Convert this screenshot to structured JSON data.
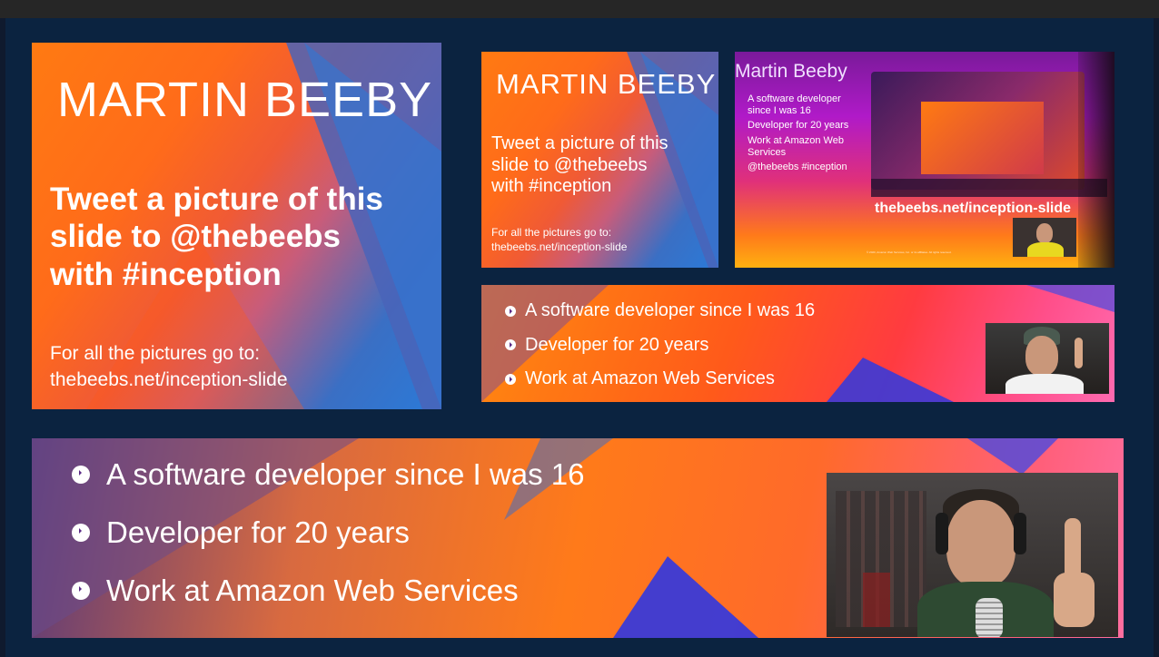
{
  "slide_main": {
    "name": "MARTIN BEEBY",
    "tweet": [
      "Tweet a picture of this",
      "slide to @thebeebs",
      "with #inception"
    ],
    "pictures_label": "For all the pictures go to:",
    "pictures_url": "thebeebs.net/inception-slide"
  },
  "slide_nested": {
    "name": "MARTIN BEEBY",
    "tweet": [
      "Tweet a picture of this",
      "slide to @thebeebs",
      "with #inception"
    ],
    "pictures_label": "For all the pictures go to:",
    "pictures_url": "thebeebs.net/inception-slide"
  },
  "slide_deep": {
    "name": "Martin Beeby",
    "bullets": [
      "A software developer",
      "since I was 16",
      "Developer for 20 years",
      "Work at Amazon Web",
      "Services",
      "@thebeebs #inception"
    ],
    "url": "thebeebs.net/inception-slide",
    "footer": "© 2020, Amazon Web Services, Inc. or its affiliates. All rights reserved."
  },
  "bullets_small": [
    "A software developer since I was 16",
    "Developer for 20 years",
    "Work at Amazon Web Services"
  ],
  "bullets_large": [
    "A software developer since I was 16",
    "Developer for 20 years",
    "Work at Amazon Web Services"
  ],
  "colors": {
    "orange": "#ff7a12",
    "blue": "#2b7ad8",
    "pink": "#ff6ab0",
    "bullet": "#5b2a86"
  }
}
